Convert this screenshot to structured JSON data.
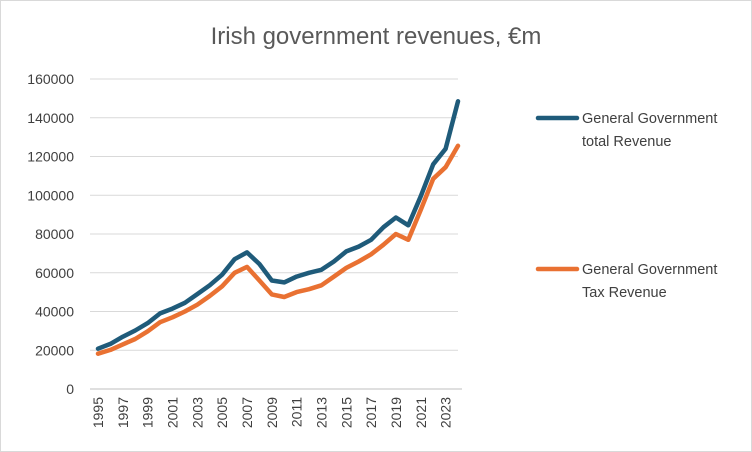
{
  "chart_data": {
    "type": "line",
    "title": "Irish government revenues, €m",
    "xlabel": "",
    "ylabel": "",
    "ylim": [
      0,
      160000
    ],
    "yticks": [
      "0",
      "20000",
      "40000",
      "60000",
      "80000",
      "100000",
      "120000",
      "140000",
      "160000"
    ],
    "x": [
      1995,
      1996,
      1997,
      1998,
      1999,
      2000,
      2001,
      2002,
      2003,
      2004,
      2005,
      2006,
      2007,
      2008,
      2009,
      2010,
      2011,
      2012,
      2013,
      2014,
      2015,
      2016,
      2017,
      2018,
      2019,
      2020,
      2021,
      2022,
      2023,
      2024
    ],
    "xticks": [
      "1995",
      "1997",
      "1999",
      "2001",
      "2003",
      "2005",
      "2007",
      "2009",
      "2011",
      "2013",
      "2015",
      "2017",
      "2019",
      "2021",
      "2023"
    ],
    "grid": true,
    "legend_position": "right",
    "series": [
      {
        "name": "General Government total Revenue",
        "legend_lines": [
          "General Government",
          "total Revenue"
        ],
        "color": "#1f5b7a",
        "values": [
          20800,
          23300,
          27000,
          30200,
          34000,
          39000,
          41500,
          44500,
          49000,
          53500,
          59000,
          67000,
          70500,
          64500,
          56000,
          55000,
          58000,
          60000,
          61500,
          65800,
          71000,
          73500,
          77000,
          83500,
          88500,
          84500,
          99500,
          116000,
          124000,
          148500
        ]
      },
      {
        "name": "General Government Tax Revenue",
        "legend_lines": [
          "General Government",
          "Tax Revenue"
        ],
        "color": "#e97132",
        "values": [
          18200,
          20200,
          23000,
          25800,
          29800,
          34500,
          37000,
          40000,
          43500,
          48000,
          53000,
          60000,
          63000,
          56000,
          48800,
          47500,
          50000,
          51500,
          53500,
          58000,
          62500,
          65800,
          69500,
          74500,
          80000,
          77000,
          92500,
          108500,
          114500,
          125500
        ]
      }
    ]
  }
}
